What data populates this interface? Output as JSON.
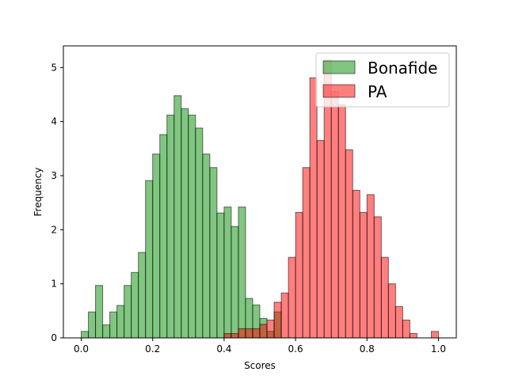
{
  "chart_data": {
    "type": "histogram",
    "title": "",
    "xlabel": "Scores",
    "ylabel": "Frequency",
    "xlim": [
      -0.05,
      1.05
    ],
    "ylim": [
      0,
      5.4
    ],
    "xticks": [
      0.0,
      0.2,
      0.4,
      0.6,
      0.8,
      1.0
    ],
    "xtick_labels": [
      "0.0",
      "0.2",
      "0.4",
      "0.6",
      "0.8",
      "1.0"
    ],
    "yticks": [
      0,
      1,
      2,
      3,
      4,
      5
    ],
    "ytick_labels": [
      "0",
      "1",
      "2",
      "3",
      "4",
      "5"
    ],
    "legend_position": "top-right",
    "bin_width": 0.02,
    "series": [
      {
        "name": "Bonafide",
        "color": "#2ca02c",
        "alpha": 0.6,
        "edgecolor": "#000000",
        "bin_starts": [
          0.0,
          0.02,
          0.04,
          0.06,
          0.08,
          0.1,
          0.12,
          0.14,
          0.16,
          0.18,
          0.2,
          0.22,
          0.24,
          0.26,
          0.28,
          0.3,
          0.32,
          0.34,
          0.36,
          0.38,
          0.4,
          0.42,
          0.44,
          0.46,
          0.48,
          0.5,
          0.52,
          0.54
        ],
        "values": [
          0.12,
          0.48,
          0.97,
          0.24,
          0.48,
          0.6,
          0.97,
          1.21,
          1.58,
          2.91,
          3.4,
          3.76,
          4.12,
          4.48,
          4.24,
          4.12,
          3.88,
          3.4,
          3.15,
          2.31,
          2.42,
          2.06,
          2.42,
          0.73,
          0.61,
          0.36,
          0.12,
          0.48
        ]
      },
      {
        "name": "PA",
        "color": "#ff0000",
        "alpha": 0.5,
        "edgecolor": "#000000",
        "bin_starts": [
          0.4,
          0.42,
          0.44,
          0.46,
          0.48,
          0.5,
          0.52,
          0.54,
          0.56,
          0.58,
          0.6,
          0.62,
          0.64,
          0.66,
          0.68,
          0.7,
          0.72,
          0.74,
          0.76,
          0.78,
          0.8,
          0.82,
          0.84,
          0.86,
          0.88,
          0.9,
          0.92,
          0.98
        ],
        "values": [
          0.08,
          0.08,
          0.17,
          0.17,
          0.17,
          0.25,
          0.33,
          0.66,
          0.83,
          1.49,
          2.32,
          3.15,
          4.81,
          3.65,
          5.14,
          4.56,
          4.31,
          3.48,
          2.73,
          2.32,
          2.65,
          2.24,
          1.49,
          1.0,
          0.58,
          0.33,
          0.08,
          0.12
        ]
      }
    ]
  }
}
